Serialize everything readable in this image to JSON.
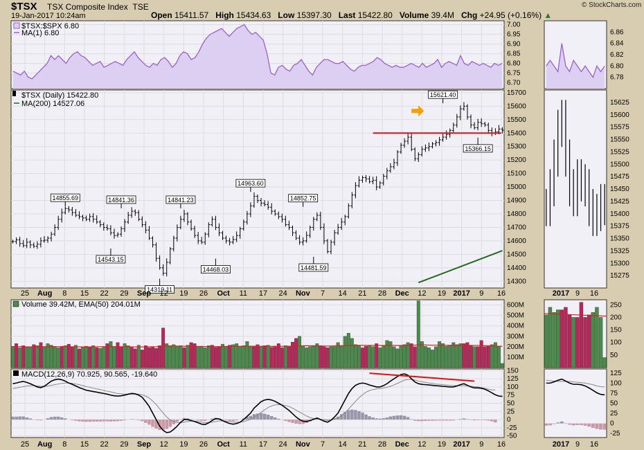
{
  "header": {
    "symbol": "$TSX",
    "name": "TSX Composite Index",
    "exchange": "TSE",
    "datetime": "19-Jan-2017 10:24am",
    "open_label": "Open",
    "open": "15411.57",
    "high_label": "High",
    "high": "15434.63",
    "low_label": "Low",
    "low": "15397.30",
    "last_label": "Last",
    "last": "15422.80",
    "volume_label": "Volume",
    "volume": "39.4M",
    "chg_label": "Chg",
    "chg": "+24.95 (+0.16%)",
    "chg_arrow": "▲",
    "brand": "© StockCharts.com"
  },
  "colors": {
    "background": "#d8cdb0",
    "panel": "#f2f0f7",
    "ratio_line": "#9a5fd0",
    "ratio_fill": "#dccff2",
    "ma200": "#1f6b1f",
    "resistance": "#e01010",
    "arrow": "#f5a000",
    "vol_up": "#4a8a4a",
    "vol_down": "#b8265a",
    "ema": "#e02020",
    "macd": "#000000",
    "signal": "#888888",
    "hist_pos": "#9a96aa",
    "hist_neg": "#c89aa8"
  },
  "chart_data": [
    {
      "type": "area",
      "panel": "ratio",
      "legend": [
        "$TSX:$SPX 6.80",
        "MA(1) 6.80"
      ],
      "ylim": [
        6.67,
        7.02
      ],
      "yticks": [
        "6.70",
        "6.75",
        "6.80",
        "6.85",
        "6.90",
        "6.95",
        "7.00"
      ],
      "values": [
        6.76,
        6.75,
        6.74,
        6.76,
        6.73,
        6.72,
        6.74,
        6.76,
        6.78,
        6.8,
        6.84,
        6.82,
        6.84,
        6.82,
        6.8,
        6.83,
        6.85,
        6.86,
        6.84,
        6.83,
        6.81,
        6.79,
        6.8,
        6.81,
        6.78,
        6.79,
        6.8,
        6.81,
        6.8,
        6.79,
        6.82,
        6.84,
        6.86,
        6.83,
        6.81,
        6.79,
        6.78,
        6.8,
        6.79,
        6.82,
        6.83,
        6.81,
        6.78,
        6.8,
        6.84,
        6.86,
        6.85,
        6.82,
        6.83,
        6.86,
        6.9,
        6.93,
        6.95,
        6.96,
        6.97,
        6.98,
        6.96,
        6.94,
        6.96,
        6.98,
        6.99,
        7.0,
        6.97,
        6.95,
        6.96,
        6.94,
        6.92,
        6.85,
        6.75,
        6.74,
        6.78,
        6.79,
        6.77,
        6.76,
        6.79,
        6.8,
        6.82,
        6.79,
        6.76,
        6.74,
        6.78,
        6.8,
        6.82,
        6.82,
        6.81,
        6.8,
        6.8,
        6.81,
        6.79,
        6.77,
        6.76,
        6.78,
        6.79,
        6.79,
        6.8,
        6.81,
        6.83,
        6.82,
        6.8,
        6.79,
        6.78,
        6.79,
        6.78,
        6.78,
        6.79,
        6.8,
        6.79,
        6.78,
        6.8,
        6.78,
        6.79,
        6.8,
        6.82,
        6.78,
        6.8,
        6.81,
        6.8,
        6.79,
        6.84,
        6.8,
        6.79,
        6.81,
        6.8,
        6.79,
        6.8,
        6.79,
        6.78,
        6.8,
        6.79,
        6.8
      ]
    },
    {
      "type": "candlestick",
      "panel": "price",
      "legend": [
        "$TSX (Daily) 15422.80",
        "MA(200) 14527.06"
      ],
      "ylim": [
        14250,
        15720
      ],
      "yticks": [
        "14300",
        "14400",
        "14500",
        "14600",
        "14700",
        "14800",
        "14900",
        "15000",
        "15100",
        "15200",
        "15300",
        "15400",
        "15500",
        "15600",
        "15700"
      ],
      "closes": [
        14595,
        14608,
        14580,
        14565,
        14590,
        14570,
        14560,
        14575,
        14600,
        14605,
        14620,
        14650,
        14700,
        14760,
        14810,
        14840,
        14830,
        14810,
        14790,
        14780,
        14770,
        14760,
        14780,
        14760,
        14740,
        14720,
        14700,
        14690,
        14660,
        14640,
        14650,
        14690,
        14740,
        14790,
        14820,
        14810,
        14760,
        14720,
        14680,
        14620,
        14570,
        14470,
        14400,
        14360,
        14440,
        14540,
        14620,
        14700,
        14760,
        14800,
        14740,
        14690,
        14640,
        14600,
        14590,
        14650,
        14720,
        14760,
        14700,
        14660,
        14620,
        14600,
        14590,
        14610,
        14640,
        14690,
        14740,
        14800,
        14860,
        14930,
        14900,
        14880,
        14870,
        14850,
        14820,
        14800,
        14780,
        14760,
        14720,
        14700,
        14660,
        14620,
        14590,
        14600,
        14640,
        14700,
        14760,
        14790,
        14700,
        14600,
        14520,
        14590,
        14660,
        14700,
        14740,
        14780,
        14860,
        14940,
        15010,
        15050,
        15070,
        15060,
        15040,
        15050,
        15000,
        15030,
        15080,
        15120,
        15150,
        15180,
        15260,
        15310,
        15340,
        15370,
        15280,
        15210,
        15240,
        15280,
        15290,
        15300,
        15320,
        15330,
        15350,
        15370,
        15390,
        15420,
        15460,
        15520,
        15580,
        15600,
        15520,
        15460,
        15440,
        15480,
        15470,
        15460,
        15420,
        15400,
        15410,
        15430,
        15422
      ],
      "ma200_range": [
        14290,
        14527
      ],
      "resistance_level": 15400,
      "annotations": [
        {
          "text": "14855.69",
          "x": 15
        },
        {
          "text": "14543.15",
          "x": 28
        },
        {
          "text": "14841.36",
          "x": 31
        },
        {
          "text": "14319.11",
          "x": 42
        },
        {
          "text": "14841.23",
          "x": 48
        },
        {
          "text": "14468.03",
          "x": 58
        },
        {
          "text": "14963.60",
          "x": 68
        },
        {
          "text": "14852.75",
          "x": 83
        },
        {
          "text": "14481.59",
          "x": 86
        },
        {
          "text": "15621.40",
          "x": 123
        },
        {
          "text": "15366.15",
          "x": 133
        }
      ]
    },
    {
      "type": "bar",
      "panel": "volume",
      "legend": [
        "Volume 39.42M, EMA(50) 204.01M"
      ],
      "ylim": [
        0,
        650
      ],
      "yticks": [
        "100M",
        "200M",
        "300M",
        "400M",
        "500M",
        "600M"
      ],
      "values": [
        205,
        230,
        190,
        210,
        200,
        195,
        220,
        210,
        240,
        200,
        230,
        215,
        200,
        190,
        205,
        210,
        225,
        200,
        215,
        180,
        195,
        205,
        200,
        210,
        190,
        185,
        200,
        230,
        250,
        200,
        240,
        200,
        230,
        210,
        195,
        180,
        215,
        170,
        210,
        190,
        200,
        185,
        210,
        380,
        230,
        210,
        220,
        200,
        210,
        190,
        215,
        240,
        230,
        200,
        205,
        190,
        210,
        215,
        195,
        200,
        225,
        200,
        215,
        220,
        230,
        200,
        210,
        250,
        200,
        205,
        220,
        200,
        210,
        215,
        195,
        205,
        230,
        190,
        210,
        200,
        245,
        280,
        300,
        210,
        190,
        200,
        205,
        230,
        210,
        200,
        190,
        200,
        200,
        240,
        210,
        300,
        330,
        280,
        220,
        210,
        190,
        205,
        215,
        200,
        230,
        190,
        210,
        260,
        250,
        200,
        180,
        210,
        220,
        240,
        230,
        200,
        640,
        250,
        205,
        190,
        170,
        200,
        250,
        230,
        205,
        210,
        240,
        220,
        230,
        230,
        240,
        210,
        200,
        200,
        260,
        200,
        210,
        220,
        240,
        200,
        40
      ],
      "ema": [
        200,
        202,
        201,
        200,
        199,
        198,
        198,
        199,
        200,
        201,
        202,
        203,
        202,
        201,
        201,
        201,
        200,
        200,
        199,
        199,
        198,
        198,
        198,
        198,
        199,
        200,
        201,
        202,
        203,
        202,
        201,
        200,
        199,
        199,
        198,
        198,
        197,
        198,
        199,
        199,
        200,
        201,
        203,
        205,
        207,
        208,
        207,
        206,
        205,
        205,
        204,
        204,
        203,
        203,
        203,
        202,
        202,
        202,
        202,
        202,
        202,
        203,
        203,
        203,
        204,
        204,
        204,
        205,
        205,
        205,
        205,
        204,
        204,
        204,
        204,
        204,
        204,
        204,
        204,
        205,
        206,
        207,
        208,
        209,
        209,
        209,
        209,
        208,
        208,
        207,
        207,
        207,
        208,
        209,
        210,
        211,
        212,
        213,
        214,
        214,
        213,
        213,
        212,
        212,
        212,
        212,
        212,
        213,
        213,
        213,
        212,
        212,
        212,
        213,
        214,
        216,
        218,
        218,
        217,
        216,
        215,
        215,
        215,
        214,
        214,
        214,
        214,
        214,
        214,
        214,
        213,
        213,
        212,
        212,
        211,
        210,
        209,
        208,
        206,
        205,
        204
      ],
      "up_flags": [
        1,
        0,
        1,
        0,
        1,
        1,
        0,
        1,
        0,
        1,
        1,
        1,
        1,
        1,
        0,
        1,
        0,
        0,
        1,
        0,
        1,
        1,
        0,
        1,
        0,
        1,
        1,
        0,
        1,
        1,
        0,
        0,
        1,
        1,
        0,
        0,
        1,
        0,
        0,
        0,
        0,
        0,
        0,
        0,
        1,
        1,
        1,
        1,
        1,
        0,
        1,
        0,
        0,
        1,
        1,
        1,
        1,
        0,
        0,
        0,
        1,
        1,
        0,
        1,
        1,
        1,
        1,
        1,
        1,
        0,
        0,
        1,
        0,
        1,
        0,
        0,
        0,
        0,
        1,
        0,
        0,
        0,
        1,
        1,
        1,
        1,
        1,
        1,
        0,
        0,
        0,
        1,
        1,
        1,
        1,
        1,
        1,
        1,
        1,
        1,
        0,
        0,
        1,
        1,
        0,
        1,
        1,
        1,
        1,
        1,
        1,
        1,
        1,
        1,
        0,
        0,
        1,
        1,
        1,
        1,
        1,
        1,
        1,
        1,
        1,
        1,
        1,
        1,
        1,
        0,
        0,
        0,
        1,
        0,
        0,
        0,
        0,
        1,
        1,
        1,
        1
      ]
    },
    {
      "type": "line",
      "panel": "macd",
      "legend": [
        "MACD(12,26,9) 70.925, 90.565, -19.640"
      ],
      "ylim": [
        -55,
        155
      ],
      "yticks": [
        "-50",
        "-25",
        "0",
        "25",
        "50",
        "75",
        "100",
        "125",
        "150"
      ],
      "macd": [
        110,
        112,
        115,
        117,
        114,
        110,
        105,
        100,
        98,
        102,
        110,
        118,
        122,
        124,
        122,
        118,
        112,
        108,
        103,
        98,
        94,
        90,
        88,
        86,
        84,
        82,
        80,
        78,
        75,
        73,
        72,
        73,
        75,
        78,
        80,
        79,
        75,
        68,
        55,
        40,
        20,
        0,
        -20,
        -33,
        -40,
        -38,
        -30,
        -20,
        -8,
        0,
        0,
        -3,
        -6,
        -10,
        -14,
        -15,
        -10,
        -3,
        3,
        2,
        -3,
        -8,
        -12,
        -14,
        -12,
        -8,
        0,
        10,
        20,
        35,
        45,
        55,
        60,
        62,
        60,
        56,
        50,
        44,
        36,
        28,
        18,
        8,
        0,
        -5,
        -6,
        -3,
        1,
        5,
        0,
        -5,
        -8,
        -2,
        8,
        20,
        40,
        60,
        80,
        95,
        105,
        110,
        112,
        110,
        106,
        103,
        100,
        100,
        104,
        110,
        118,
        125,
        132,
        138,
        140,
        136,
        125,
        115,
        110,
        108,
        107,
        106,
        105,
        104,
        103,
        102,
        101,
        100,
        100,
        103,
        107,
        110,
        105,
        100,
        97,
        97,
        96,
        93,
        88,
        82,
        76,
        72,
        71
      ],
      "signal": [
        95,
        97,
        99,
        101,
        103,
        104,
        104,
        103,
        102,
        102,
        103,
        105,
        107,
        109,
        111,
        112,
        112,
        111,
        109,
        107,
        104,
        101,
        99,
        96,
        94,
        92,
        89,
        87,
        85,
        82,
        80,
        79,
        78,
        78,
        78,
        78,
        78,
        76,
        72,
        66,
        57,
        46,
        33,
        20,
        8,
        -1,
        -6,
        -9,
        -10,
        -8,
        -6,
        -5,
        -5,
        -6,
        -8,
        -9,
        -9,
        -8,
        -6,
        -4,
        -4,
        -5,
        -6,
        -7,
        -8,
        -8,
        -6,
        -3,
        1,
        7,
        14,
        22,
        30,
        37,
        42,
        45,
        46,
        45,
        43,
        40,
        35,
        29,
        23,
        17,
        11,
        6,
        3,
        2,
        1,
        0,
        -1,
        -1,
        1,
        5,
        12,
        21,
        32,
        44,
        56,
        67,
        76,
        84,
        89,
        92,
        94,
        95,
        97,
        99,
        102,
        106,
        111,
        116,
        121,
        123,
        123,
        121,
        118,
        116,
        114,
        112,
        111,
        109,
        108,
        107,
        106,
        105,
        104,
        104,
        104,
        104,
        103,
        102,
        101,
        100,
        98,
        96,
        93,
        91,
        90.5
      ]
    }
  ],
  "axes": {
    "x_labels": [
      "25",
      "Aug",
      "8",
      "15",
      "22",
      "29",
      "Sep",
      "12",
      "19",
      "26",
      "Oct",
      "11",
      "17",
      "24",
      "Nov",
      "7",
      "14",
      "21",
      "28",
      "Dec",
      "12",
      "19",
      "2017",
      "9",
      "16"
    ],
    "mini_x_labels": [
      "2017",
      "9",
      "16"
    ],
    "mini_ratio_yticks": [
      "6.78",
      "6.80",
      "6.82",
      "6.84",
      "6.86"
    ],
    "mini_price_yticks": [
      "15275",
      "15300",
      "15325",
      "15350",
      "15375",
      "15400",
      "15425",
      "15450",
      "15475",
      "15500",
      "15525",
      "15550",
      "15575",
      "15600",
      "15625"
    ],
    "mini_volume_yticks": [
      "50",
      "100",
      "150",
      "200",
      "250"
    ],
    "mini_macd_yticks": [
      "-25",
      "0",
      "25",
      "50",
      "75",
      "100",
      "125"
    ]
  }
}
